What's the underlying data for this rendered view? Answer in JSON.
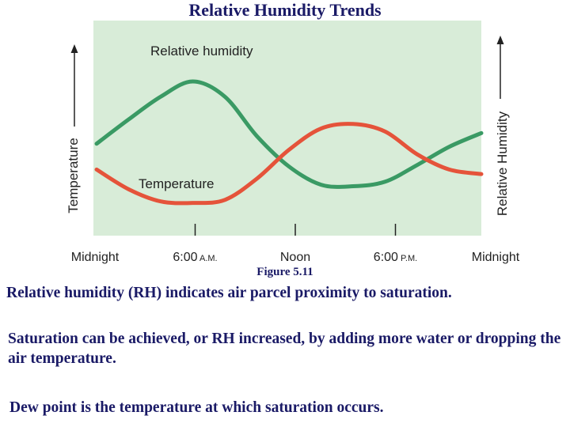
{
  "page": {
    "title": "Relative Humidity Trends",
    "caption": "Figure 5.11",
    "paragraphs": [
      "Relative humidity (RH) indicates air parcel proximity to saturation.",
      "Saturation can be achieved, or RH increased, by adding more water or dropping the air temperature.",
      "Dew point is the temperature at which saturation occurs."
    ]
  },
  "colors": {
    "plot_background": "#d8ecd8",
    "relative_humidity": "#3a9a64",
    "temperature": "#e5533a"
  },
  "chart_data": {
    "type": "line",
    "xlabel": "",
    "y_left_label": "Temperature",
    "y_right_label": "Relative Humidity",
    "tick_labels": [
      "Midnight",
      "6:00 A.M.",
      "Noon",
      "6:00 P.M.",
      "Midnight"
    ],
    "tick_label_main": [
      "Midnight",
      "6:00",
      "Noon",
      "6:00",
      "Midnight"
    ],
    "tick_label_suffix": [
      "",
      "A.M.",
      "",
      "P.M.",
      ""
    ],
    "x_hours": [
      0,
      6,
      12,
      18,
      24
    ],
    "xlim": [
      0,
      24
    ],
    "ylim": [
      0,
      100
    ],
    "grid": false,
    "y_ticks_shown": false,
    "series": [
      {
        "name": "Relative humidity",
        "key": "rh",
        "x": [
          0,
          2,
          4,
          6,
          8,
          10,
          12,
          14,
          16,
          18,
          20,
          22,
          24
        ],
        "y": [
          47,
          63,
          78,
          88,
          78,
          52,
          32,
          20,
          19,
          22,
          33,
          45,
          54
        ]
      },
      {
        "name": "Temperature",
        "key": "temp",
        "x": [
          0,
          2,
          4,
          6,
          8,
          10,
          12,
          14,
          16,
          18,
          20,
          22,
          24
        ],
        "y": [
          30,
          17,
          9,
          8,
          10,
          24,
          43,
          57,
          60,
          55,
          40,
          30,
          27
        ]
      }
    ]
  }
}
